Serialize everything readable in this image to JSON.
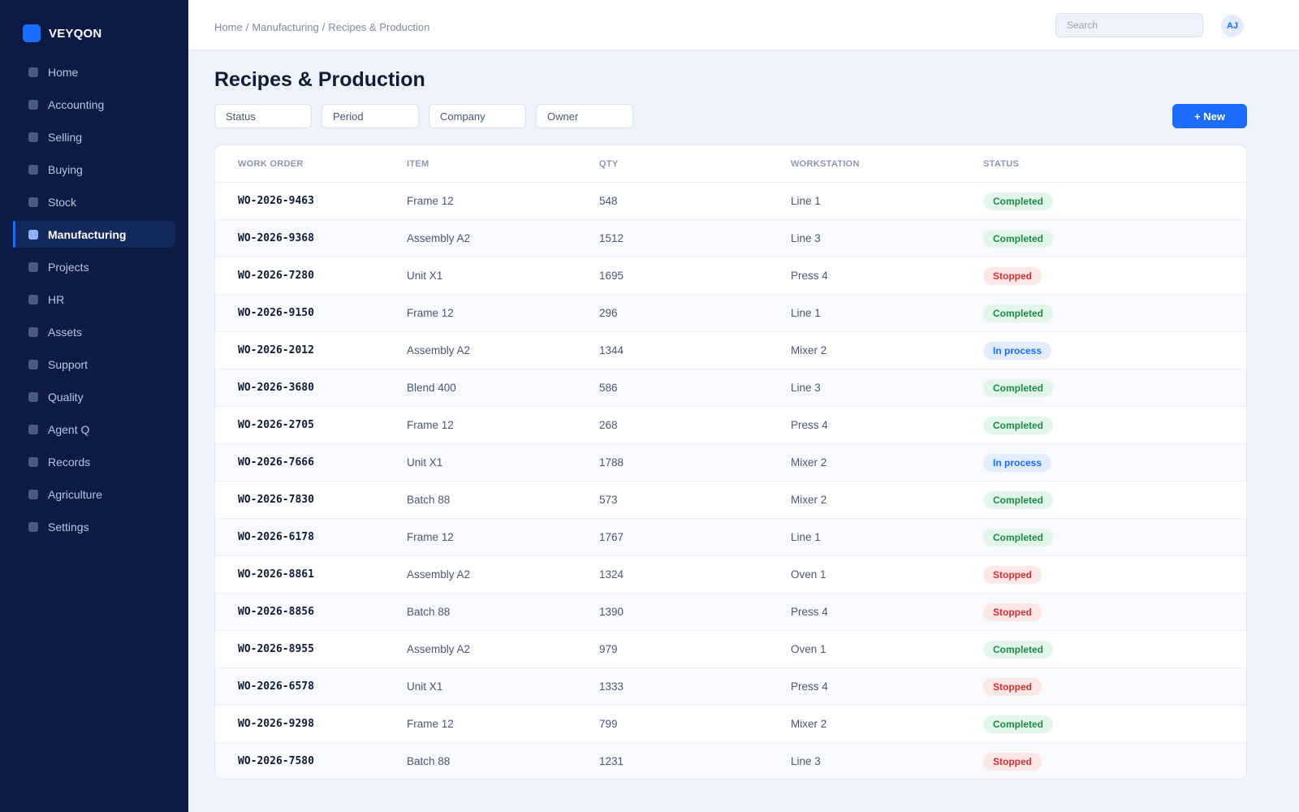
{
  "brand": {
    "name": "VEYQON"
  },
  "sidebar": {
    "items": [
      {
        "label": "Home",
        "active": false
      },
      {
        "label": "Accounting",
        "active": false
      },
      {
        "label": "Selling",
        "active": false
      },
      {
        "label": "Buying",
        "active": false
      },
      {
        "label": "Stock",
        "active": false
      },
      {
        "label": "Manufacturing",
        "active": true
      },
      {
        "label": "Projects",
        "active": false
      },
      {
        "label": "HR",
        "active": false
      },
      {
        "label": "Assets",
        "active": false
      },
      {
        "label": "Support",
        "active": false
      },
      {
        "label": "Quality",
        "active": false
      },
      {
        "label": "Agent Q",
        "active": false
      },
      {
        "label": "Records",
        "active": false
      },
      {
        "label": "Agriculture",
        "active": false
      },
      {
        "label": "Settings",
        "active": false
      }
    ]
  },
  "topbar": {
    "breadcrumb": [
      "Home",
      "Manufacturing",
      "Recipes & Production"
    ],
    "breadcrumb_separator": "/",
    "search_placeholder": "Search",
    "avatar_initials": "AJ"
  },
  "page": {
    "title": "Recipes & Production"
  },
  "filters": [
    "Status",
    "Period",
    "Company",
    "Owner"
  ],
  "new_button": {
    "label": "+ New"
  },
  "table": {
    "columns": [
      "Work Order",
      "Item",
      "Qty",
      "Workstation",
      "Status"
    ],
    "rows": [
      {
        "work_order": "WO-2026-9463",
        "item": "Frame 12",
        "qty": "548",
        "workstation": "Line 1",
        "status": "Completed"
      },
      {
        "work_order": "WO-2026-9368",
        "item": "Assembly A2",
        "qty": "1512",
        "workstation": "Line 3",
        "status": "Completed"
      },
      {
        "work_order": "WO-2026-7280",
        "item": "Unit X1",
        "qty": "1695",
        "workstation": "Press 4",
        "status": "Stopped"
      },
      {
        "work_order": "WO-2026-9150",
        "item": "Frame 12",
        "qty": "296",
        "workstation": "Line 1",
        "status": "Completed"
      },
      {
        "work_order": "WO-2026-2012",
        "item": "Assembly A2",
        "qty": "1344",
        "workstation": "Mixer 2",
        "status": "In process"
      },
      {
        "work_order": "WO-2026-3680",
        "item": "Blend 400",
        "qty": "586",
        "workstation": "Line 3",
        "status": "Completed"
      },
      {
        "work_order": "WO-2026-2705",
        "item": "Frame 12",
        "qty": "268",
        "workstation": "Press 4",
        "status": "Completed"
      },
      {
        "work_order": "WO-2026-7666",
        "item": "Unit X1",
        "qty": "1788",
        "workstation": "Mixer 2",
        "status": "In process"
      },
      {
        "work_order": "WO-2026-7830",
        "item": "Batch 88",
        "qty": "573",
        "workstation": "Mixer 2",
        "status": "Completed"
      },
      {
        "work_order": "WO-2026-6178",
        "item": "Frame 12",
        "qty": "1767",
        "workstation": "Line 1",
        "status": "Completed"
      },
      {
        "work_order": "WO-2026-8861",
        "item": "Assembly A2",
        "qty": "1324",
        "workstation": "Oven 1",
        "status": "Stopped"
      },
      {
        "work_order": "WO-2026-8856",
        "item": "Batch 88",
        "qty": "1390",
        "workstation": "Press 4",
        "status": "Stopped"
      },
      {
        "work_order": "WO-2026-8955",
        "item": "Assembly A2",
        "qty": "979",
        "workstation": "Oven 1",
        "status": "Completed"
      },
      {
        "work_order": "WO-2026-6578",
        "item": "Unit X1",
        "qty": "1333",
        "workstation": "Press 4",
        "status": "Stopped"
      },
      {
        "work_order": "WO-2026-9298",
        "item": "Frame 12",
        "qty": "799",
        "workstation": "Mixer 2",
        "status": "Completed"
      },
      {
        "work_order": "WO-2026-7580",
        "item": "Batch 88",
        "qty": "1231",
        "workstation": "Line 3",
        "status": "Stopped"
      }
    ]
  },
  "colors": {
    "sidebar_bg": "#0c1a45",
    "accent": "#1a6dff",
    "page_bg": "#eef2f9",
    "status_completed": "#1e8a4a",
    "status_stopped": "#c93434",
    "status_in_process": "#1a6dff"
  },
  "icons": {
    "brand": "app-logo-icon",
    "nav_item": "nav-bullet-icon"
  }
}
